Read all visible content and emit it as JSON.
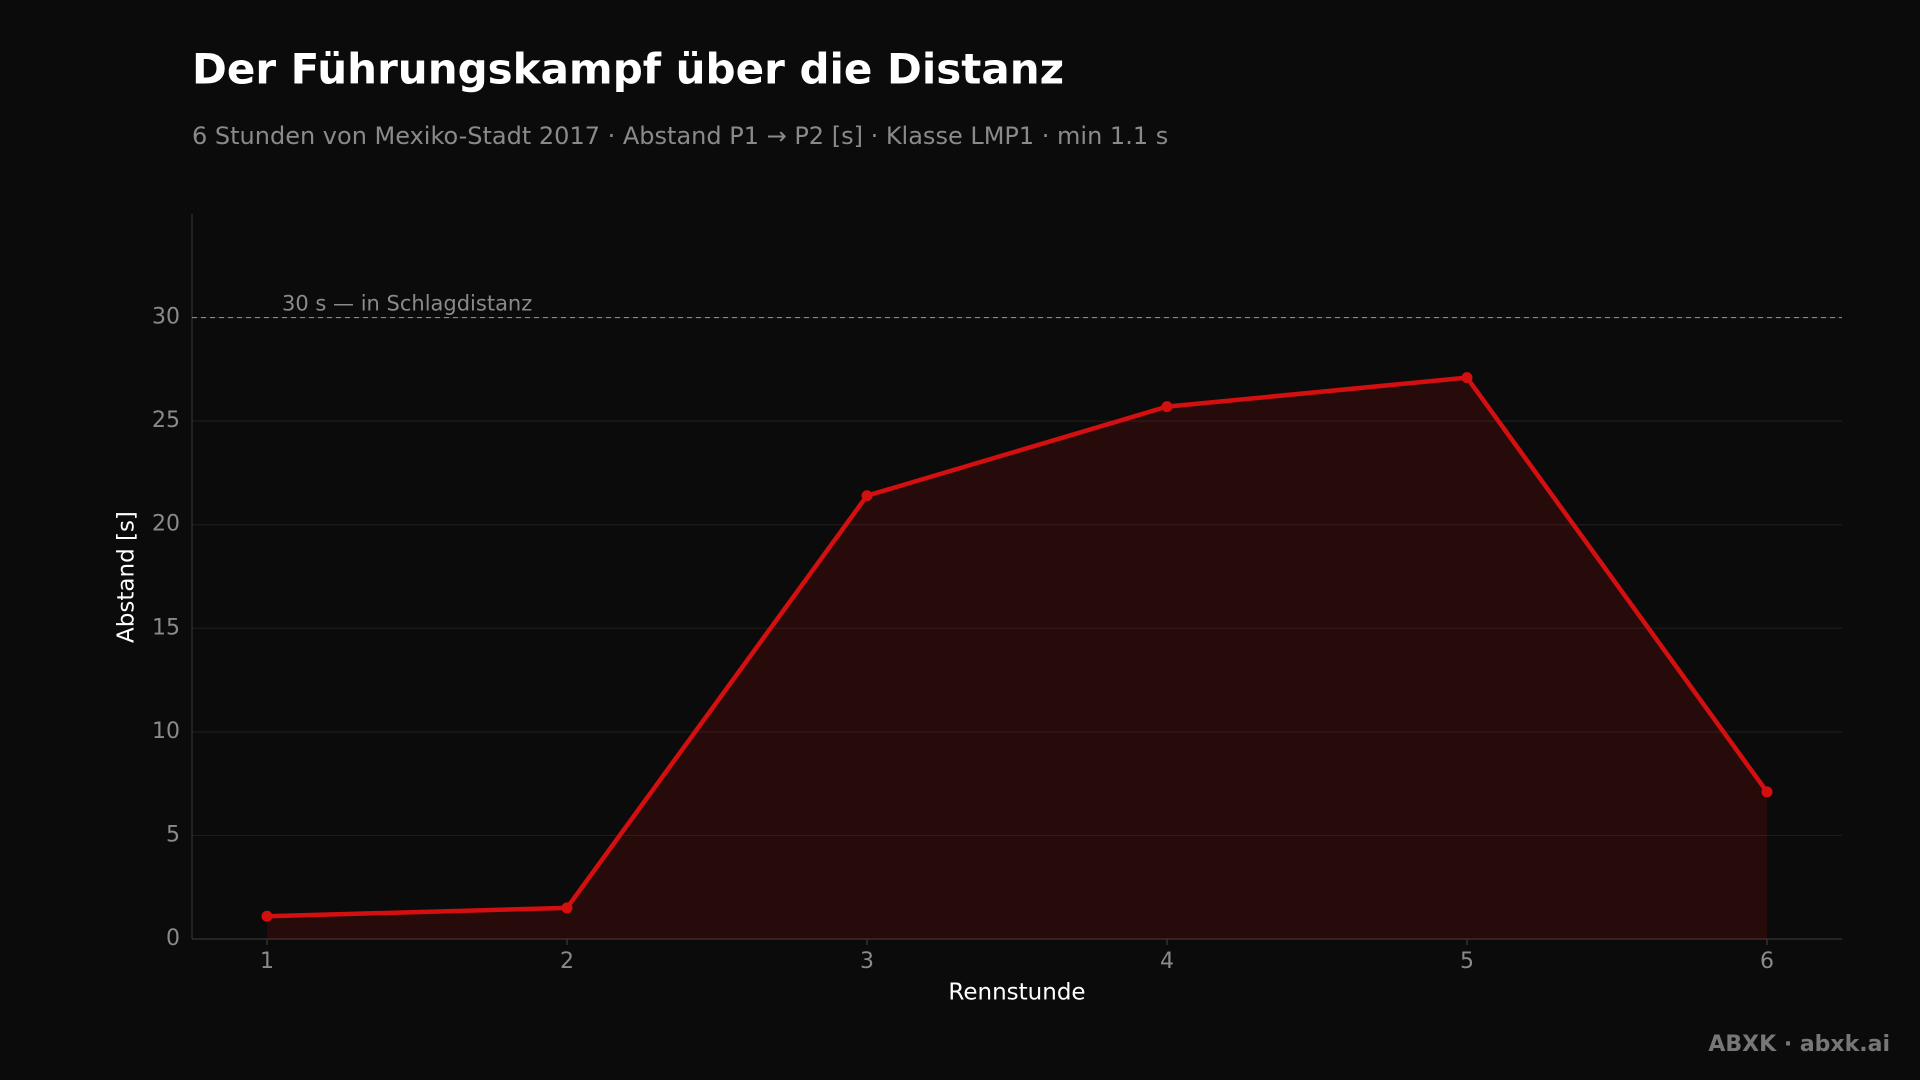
{
  "chart_data": {
    "type": "line",
    "title": "Der Führungskampf über die Distanz",
    "subtitle": "6 Stunden von Mexiko-Stadt 2017 · Abstand P1 → P2 [s] · Klasse LMP1 · min 1.1 s",
    "x_label": "Rennstunde",
    "y_label": "Abstand [s]",
    "x": [
      1,
      2,
      3,
      4,
      5,
      6
    ],
    "series": [
      {
        "name": "Abstand P1 → P2",
        "color": "#d40f0f",
        "values": [
          1.1,
          1.5,
          21.4,
          25.7,
          27.1,
          7.1
        ]
      }
    ],
    "xlim": [
      0.75,
      6.25
    ],
    "xticks": [
      1,
      2,
      3,
      4,
      5,
      6
    ],
    "ylim": [
      0,
      35
    ],
    "yticks": [
      0,
      5,
      10,
      15,
      20,
      25,
      30
    ],
    "grid": true,
    "area_fill": true,
    "reference_line": {
      "value": 30,
      "label": "30 s — in Schlagdistanz"
    },
    "footer": "ABXK · abxk.ai"
  }
}
